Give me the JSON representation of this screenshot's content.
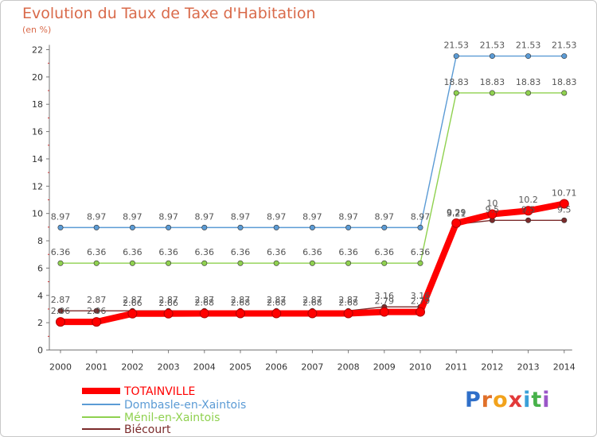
{
  "title": "Evolution du Taux de Taxe d'Habitation",
  "subtitle": "(en %)",
  "brand": "Proxiti",
  "chart_data": {
    "type": "line",
    "x": [
      "2000",
      "2001",
      "2002",
      "2003",
      "2004",
      "2005",
      "2006",
      "2007",
      "2008",
      "2009",
      "2010",
      "2011",
      "2012",
      "2013",
      "2014"
    ],
    "ylim": [
      0,
      22
    ],
    "yticks": [
      0,
      2,
      4,
      6,
      8,
      10,
      12,
      14,
      16,
      18,
      20,
      22
    ],
    "grid": false,
    "legend_position": "bottom-left",
    "series": [
      {
        "name": "TOTAINVILLE",
        "color": "#ff0000",
        "values": [
          2.06,
          2.06,
          2.66,
          2.66,
          2.68,
          2.68,
          2.68,
          2.68,
          2.68,
          2.79,
          2.79,
          9.29,
          9.95,
          10.2,
          10.71
        ],
        "labels": [
          "2.06",
          "2.06",
          "2.66",
          "2.66",
          "2.68",
          "2.68",
          "2.68",
          "2.68",
          "2.68",
          "2.79",
          "2.79",
          "9.29",
          "10",
          "10.2",
          "10.71"
        ]
      },
      {
        "name": "Dombasle-en-Xaintois",
        "color": "#5b9bd5",
        "values": [
          8.97,
          8.97,
          8.97,
          8.97,
          8.97,
          8.97,
          8.97,
          8.97,
          8.97,
          8.97,
          8.97,
          21.53,
          21.53,
          21.53,
          21.53
        ],
        "labels": [
          "8.97",
          "8.97",
          "8.97",
          "8.97",
          "8.97",
          "8.97",
          "8.97",
          "8.97",
          "8.97",
          "8.97",
          "8.97",
          "21.53",
          "21.53",
          "21.53",
          "21.53"
        ]
      },
      {
        "name": "Ménil-en-Xaintois",
        "color": "#8fd14f",
        "values": [
          6.36,
          6.36,
          6.36,
          6.36,
          6.36,
          6.36,
          6.36,
          6.36,
          6.36,
          6.36,
          6.36,
          18.83,
          18.83,
          18.83,
          18.83
        ],
        "labels": [
          "6.36",
          "6.36",
          "6.36",
          "6.36",
          "6.36",
          "6.36",
          "6.36",
          "6.36",
          "6.36",
          "6.36",
          "6.36",
          "18.83",
          "18.83",
          "18.83",
          "18.83"
        ]
      },
      {
        "name": "Biécourt",
        "color": "#7b2b2b",
        "values": [
          2.87,
          2.87,
          2.87,
          2.87,
          2.87,
          2.87,
          2.87,
          2.87,
          2.87,
          3.16,
          3.16,
          9.21,
          9.5,
          9.5,
          9.5
        ],
        "labels": [
          "2.87",
          "2.87",
          "2.87",
          "2.87",
          "2.87",
          "2.87",
          "2.87",
          "2.87",
          "2.87",
          "3.16",
          "3.16",
          "9.21",
          "9.5",
          "9.5",
          "9.5"
        ]
      }
    ]
  }
}
